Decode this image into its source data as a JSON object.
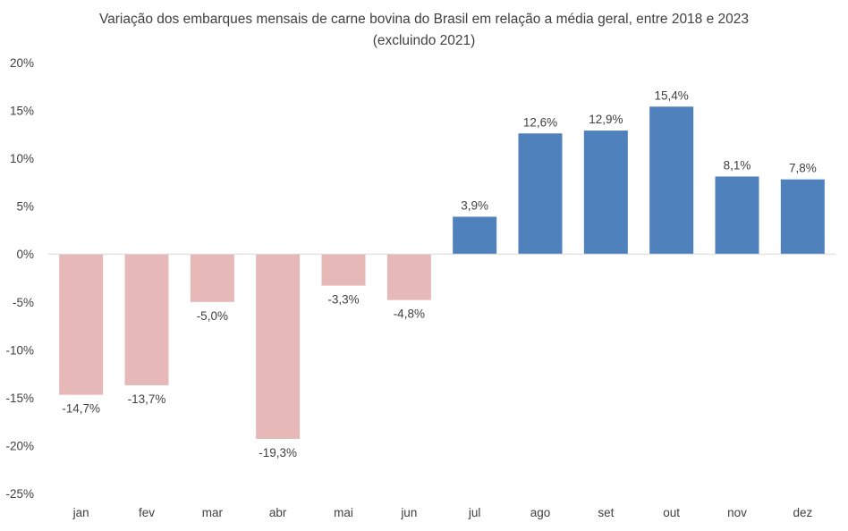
{
  "chart_data": {
    "type": "bar",
    "title": "Variação dos embarques mensais de carne bovina do Brasil em relação a média geral, entre 2018 e 2023",
    "subtitle": "(excluindo 2021)",
    "xlabel": "",
    "ylabel": "",
    "ylim": [
      -25,
      20
    ],
    "yticks": [
      20,
      15,
      10,
      5,
      0,
      -5,
      -10,
      -15,
      -20,
      -25
    ],
    "ytick_labels": [
      "20%",
      "15%",
      "10%",
      "5%",
      "0%",
      "-5%",
      "-10%",
      "-15%",
      "-20%",
      "-25%"
    ],
    "grid": false,
    "categories": [
      "jan",
      "fev",
      "mar",
      "abr",
      "mai",
      "jun",
      "jul",
      "ago",
      "set",
      "out",
      "nov",
      "dez"
    ],
    "values": [
      -14.7,
      -13.7,
      -5.0,
      -19.3,
      -3.3,
      -4.8,
      3.9,
      12.6,
      12.9,
      15.4,
      8.1,
      7.8
    ],
    "data_labels": [
      "-14,7%",
      "-13,7%",
      "-5,0%",
      "-19,3%",
      "-3,3%",
      "-4,8%",
      "3,9%",
      "12,6%",
      "12,9%",
      "15,4%",
      "8,1%",
      "7,8%"
    ],
    "colors": {
      "positive": "#4F81BD",
      "negative": "#E6B9B8",
      "axis": "#D9D9D9"
    }
  }
}
